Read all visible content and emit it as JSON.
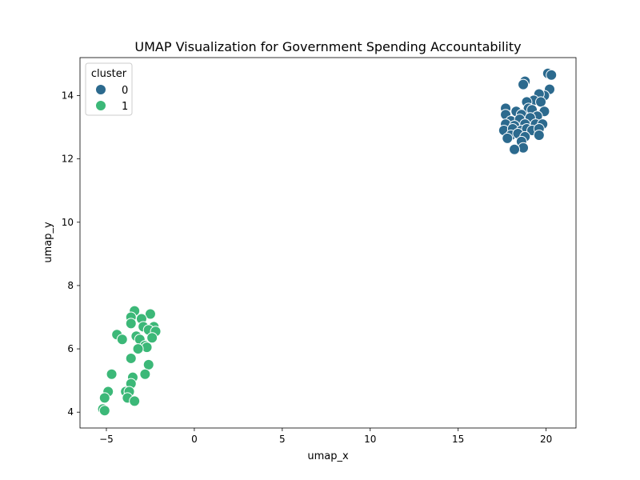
{
  "chart_data": {
    "type": "scatter",
    "title": "UMAP Visualization for Government Spending Accountability",
    "xlabel": "umap_x",
    "ylabel": "umap_y",
    "xlim": [
      -6.5,
      21.7
    ],
    "ylim": [
      3.5,
      15.2
    ],
    "xticks": [
      -5,
      0,
      5,
      10,
      15,
      20
    ],
    "yticks": [
      4,
      6,
      8,
      10,
      12,
      14
    ],
    "grid": false,
    "legend": {
      "title": "cluster",
      "placement": "top-left"
    },
    "series": [
      {
        "name": "0",
        "color": "#2c6a8e",
        "points": [
          [
            20.1,
            14.7
          ],
          [
            20.3,
            14.65
          ],
          [
            18.8,
            14.45
          ],
          [
            18.7,
            14.35
          ],
          [
            20.2,
            14.2
          ],
          [
            19.9,
            14.0
          ],
          [
            19.6,
            14.05
          ],
          [
            19.3,
            13.85
          ],
          [
            18.9,
            13.8
          ],
          [
            19.7,
            13.8
          ],
          [
            17.7,
            13.6
          ],
          [
            18.3,
            13.5
          ],
          [
            19.0,
            13.6
          ],
          [
            19.2,
            13.55
          ],
          [
            19.9,
            13.5
          ],
          [
            17.7,
            13.4
          ],
          [
            18.6,
            13.4
          ],
          [
            19.5,
            13.35
          ],
          [
            18.0,
            13.2
          ],
          [
            18.5,
            13.25
          ],
          [
            19.1,
            13.3
          ],
          [
            17.7,
            13.1
          ],
          [
            18.2,
            13.05
          ],
          [
            18.8,
            13.1
          ],
          [
            19.4,
            13.1
          ],
          [
            19.8,
            13.1
          ],
          [
            17.6,
            12.9
          ],
          [
            18.1,
            12.95
          ],
          [
            18.6,
            12.9
          ],
          [
            18.9,
            12.95
          ],
          [
            19.2,
            12.9
          ],
          [
            19.6,
            12.95
          ],
          [
            18.0,
            12.75
          ],
          [
            18.4,
            12.8
          ],
          [
            18.8,
            12.7
          ],
          [
            19.6,
            12.75
          ],
          [
            17.8,
            12.65
          ],
          [
            18.6,
            12.55
          ],
          [
            18.7,
            12.35
          ],
          [
            18.2,
            12.3
          ]
        ]
      },
      {
        "name": "1",
        "color": "#3cb878",
        "points": [
          [
            -3.4,
            7.2
          ],
          [
            -2.5,
            7.1
          ],
          [
            -3.6,
            7.0
          ],
          [
            -3.0,
            6.95
          ],
          [
            -3.6,
            6.8
          ],
          [
            -2.9,
            6.7
          ],
          [
            -2.3,
            6.7
          ],
          [
            -2.6,
            6.6
          ],
          [
            -2.2,
            6.55
          ],
          [
            -4.4,
            6.45
          ],
          [
            -3.3,
            6.4
          ],
          [
            -4.1,
            6.3
          ],
          [
            -3.1,
            6.3
          ],
          [
            -2.4,
            6.35
          ],
          [
            -2.8,
            6.1
          ],
          [
            -2.7,
            6.05
          ],
          [
            -3.2,
            6.0
          ],
          [
            -3.6,
            5.7
          ],
          [
            -2.6,
            5.5
          ],
          [
            -4.7,
            5.2
          ],
          [
            -2.8,
            5.2
          ],
          [
            -3.5,
            5.1
          ],
          [
            -3.6,
            4.9
          ],
          [
            -3.9,
            4.65
          ],
          [
            -3.7,
            4.65
          ],
          [
            -4.9,
            4.65
          ],
          [
            -3.8,
            4.45
          ],
          [
            -5.1,
            4.45
          ],
          [
            -3.4,
            4.35
          ],
          [
            -5.2,
            4.1
          ],
          [
            -5.1,
            4.05
          ]
        ]
      }
    ]
  }
}
